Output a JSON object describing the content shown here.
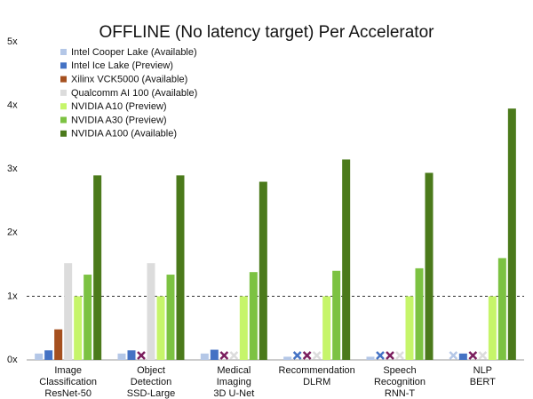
{
  "chart_data": {
    "type": "bar",
    "title": "OFFLINE (No latency target) Per Accelerator",
    "categories": [
      [
        "Image",
        "Classification",
        "ResNet-50"
      ],
      [
        "Object",
        "Detection",
        "SSD-Large"
      ],
      [
        "Medical",
        "Imaging",
        "3D U-Net"
      ],
      [
        "Recommendation",
        "DLRM"
      ],
      [
        "Speech",
        "Recognition",
        "RNN-T"
      ],
      [
        "NLP",
        "BERT"
      ]
    ],
    "series": [
      {
        "name": "Intel Cooper Lake (Available)",
        "color": "#b4c7e7",
        "values": [
          0.1,
          0.1,
          0.1,
          0.05,
          0.05,
          null
        ]
      },
      {
        "name": "Intel Ice Lake (Preview)",
        "color": "#4472c4",
        "values": [
          0.15,
          0.15,
          0.16,
          null,
          null,
          0.1
        ]
      },
      {
        "name": "Xilinx VCK5000 (Available)",
        "color": "#a5501f",
        "values": [
          0.48,
          null,
          null,
          null,
          null,
          null
        ]
      },
      {
        "name": "Qualcomm AI 100 (Available)",
        "color": "#dcdcdc",
        "values": [
          1.52,
          1.52,
          null,
          null,
          null,
          null
        ]
      },
      {
        "name": "NVIDIA A10 (Preview)",
        "color": "#c6f56a",
        "values": [
          1.0,
          1.0,
          1.0,
          1.0,
          1.0,
          1.0
        ]
      },
      {
        "name": "NVIDIA A30 (Preview)",
        "color": "#7cc242",
        "values": [
          1.34,
          1.34,
          1.38,
          1.4,
          1.44,
          1.6
        ]
      },
      {
        "name": "NVIDIA A100 (Available)",
        "color": "#4b7a1b",
        "values": [
          2.9,
          2.9,
          2.8,
          3.15,
          2.94,
          3.95
        ]
      }
    ],
    "missing_mark_color": "#7b1f5e",
    "ylim": [
      0,
      5
    ],
    "yticks": [
      {
        "value": 0,
        "label": "0x"
      },
      {
        "value": 1,
        "label": "1x"
      },
      {
        "value": 2,
        "label": "2x"
      },
      {
        "value": 3,
        "label": "3x"
      },
      {
        "value": 4,
        "label": "4x"
      },
      {
        "value": 5,
        "label": "5x"
      }
    ],
    "reference_line": 1,
    "grid": false,
    "legend": "top-left"
  }
}
